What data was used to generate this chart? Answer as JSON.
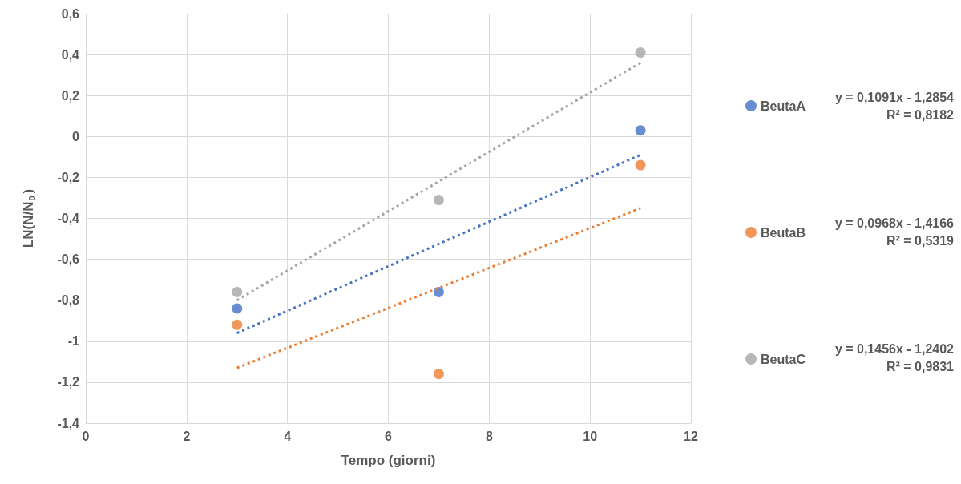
{
  "chart_data": {
    "type": "scatter",
    "xlabel": "Tempo (giorni)",
    "ylabel": "LN(N/N$_{0}$)",
    "xlim": [
      0,
      12
    ],
    "xticks": [
      0,
      2,
      4,
      6,
      8,
      10,
      12
    ],
    "ylim": [
      -1.4,
      0.6
    ],
    "yticks": [
      {
        "value": -1.4,
        "label": "-1,4"
      },
      {
        "value": -1.2,
        "label": "-1,2"
      },
      -1,
      {
        "value": -0.8,
        "label": "-0,8"
      },
      {
        "value": -0.6,
        "label": "-0,6"
      },
      {
        "value": -0.4,
        "label": "-0,4"
      },
      {
        "value": -0.2,
        "label": "-0,2"
      },
      0,
      {
        "value": 0.2,
        "label": "0,2"
      },
      {
        "value": 0.4,
        "label": "0,4"
      },
      {
        "value": 0.6,
        "label": "0,6"
      }
    ],
    "grid": true,
    "legend": "right",
    "series": [
      {
        "name": "BeutaA",
        "marker": "circle",
        "color": "#4472c4",
        "x": [
          3,
          7,
          11
        ],
        "values": [
          -0.84,
          -0.76,
          0.03
        ]
      },
      {
        "name": "BeutaB",
        "marker": "circle",
        "color": "#ed7d31",
        "x": [
          3,
          7,
          11
        ],
        "values": [
          -0.92,
          -1.16,
          -0.14
        ]
      },
      {
        "name": "BeutaC",
        "marker": "circle",
        "color": "#a5a5a5",
        "x": [
          3,
          7,
          11
        ],
        "values": [
          -0.76,
          -0.31,
          0.41
        ]
      },
      {
        "type": "line",
        "marker": "none",
        "color": "#4472c4",
        "line_style": "dotted",
        "x": [
          3,
          11
        ],
        "values": [
          -0.96,
          -0.09
        ]
      },
      {
        "type": "line",
        "marker": "none",
        "color": "#ed7d31",
        "line_style": "dotted",
        "x": [
          3,
          11
        ],
        "values": [
          -1.13,
          -0.35
        ]
      },
      {
        "type": "line",
        "marker": "none",
        "color": "#a5a5a5",
        "line_style": "dotted",
        "x": [
          3,
          11
        ],
        "values": [
          -0.8,
          0.36
        ]
      }
    ],
    "annotations": [
      "y = 0,1091x - 1,2854\nR² = 0,8182",
      "y = 0,0968x - 1,4166\nR² = 0,5319",
      "y = 0,1456x - 1,2402\nR² = 0,9831"
    ]
  }
}
